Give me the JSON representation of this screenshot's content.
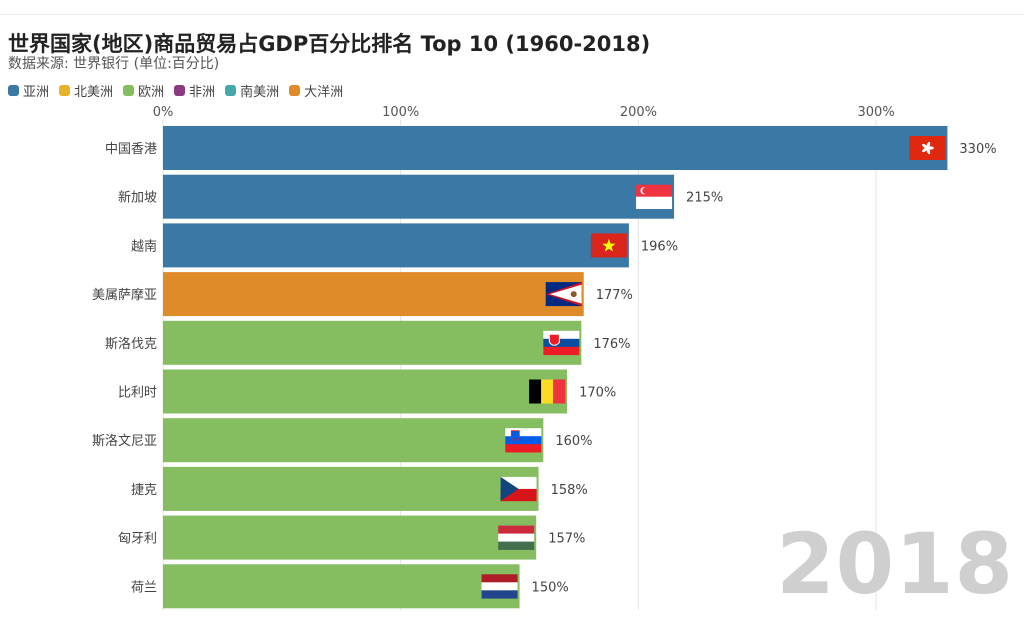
{
  "chart_data": {
    "type": "bar",
    "title": "世界国家(地区)商品贸易占GDP百分比排名 Top 10 (1960-2018)",
    "subtitle": "数据来源: 世界银行 (单位:百分比)",
    "year": "2018",
    "categories": [
      "中国香港",
      "新加坡",
      "越南",
      "美属萨摩亚",
      "斯洛伐克",
      "比利时",
      "斯洛文尼亚",
      "捷克",
      "匈牙利",
      "荷兰"
    ],
    "values": [
      330,
      215,
      196,
      177,
      176,
      170,
      160,
      158,
      157,
      150
    ],
    "value_labels": [
      "330%",
      "215%",
      "196%",
      "177%",
      "176%",
      "170%",
      "160%",
      "158%",
      "157%",
      "150%"
    ],
    "regions": [
      "亚洲",
      "亚洲",
      "亚洲",
      "大洋洲",
      "欧洲",
      "欧洲",
      "欧洲",
      "欧洲",
      "欧洲",
      "欧洲"
    ],
    "flags": [
      "hong-kong",
      "singapore",
      "vietnam",
      "american-samoa",
      "slovakia",
      "belgium",
      "slovenia",
      "czech",
      "hungary",
      "netherlands"
    ],
    "x_ticks": [
      0,
      100,
      200,
      300
    ],
    "x_tick_labels": [
      "0%",
      "100%",
      "200%",
      "300%"
    ],
    "xlim": [
      0,
      350
    ],
    "grid": true,
    "legend": {
      "position": "top-left",
      "items": [
        {
          "label": "亚洲",
          "color": "#3a78a6"
        },
        {
          "label": "北美洲",
          "color": "#e9b22b"
        },
        {
          "label": "欧洲",
          "color": "#86bd61"
        },
        {
          "label": "非洲",
          "color": "#8b3a82"
        },
        {
          "label": "南美洲",
          "color": "#46a8a8"
        },
        {
          "label": "大洋洲",
          "color": "#e08b2a"
        }
      ]
    }
  }
}
